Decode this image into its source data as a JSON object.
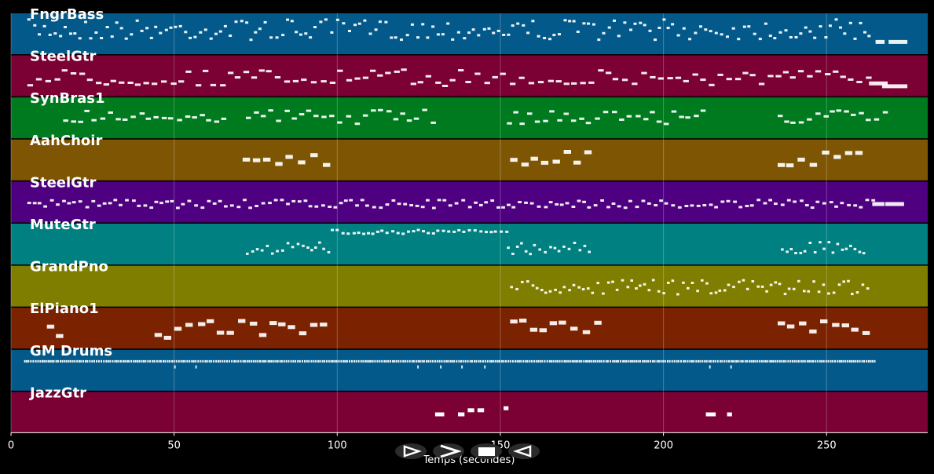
{
  "chart_data": {
    "type": "piano-roll",
    "xlabel": "Temps (secondes)",
    "xlim": [
      0,
      281
    ],
    "x_ticks": [
      0,
      50,
      100,
      150,
      200,
      250
    ],
    "grid": "vertical",
    "tracks": [
      {
        "name": "FngrBass",
        "color": "#035a8a",
        "spans": [
          [
            5,
            264,
            0.15,
            0.65,
            1.2
          ],
          [
            265,
            268,
            0.7,
            0.7,
            3
          ],
          [
            269,
            275,
            0.7,
            0.7,
            6
          ]
        ]
      },
      {
        "name": "SteelGtr",
        "color": "#7b0033",
        "spans": [
          [
            5,
            263,
            0.35,
            0.75,
            2
          ],
          [
            263,
            269,
            0.55,
            0.75,
            6
          ],
          [
            267,
            274,
            0.6,
            0.85,
            8
          ]
        ]
      },
      {
        "name": "SynBras1",
        "color": "#007a1e",
        "spans": [
          [
            16,
            67,
            0.3,
            0.6,
            1.8
          ],
          [
            72,
            131,
            0.3,
            0.65,
            1.8
          ],
          [
            152,
            213,
            0.3,
            0.65,
            1.8
          ],
          [
            235,
            269,
            0.3,
            0.65,
            1.8
          ]
        ]
      },
      {
        "name": "AahChoir",
        "color": "#7e5603",
        "spans": [
          [
            71,
            97,
            0.3,
            0.65,
            2.5
          ],
          [
            153,
            178,
            0.3,
            0.65,
            2.5
          ],
          [
            235,
            260,
            0.3,
            0.65,
            2.5
          ]
        ]
      },
      {
        "name": "SteelGtr",
        "color": "#4e0080",
        "spans": [
          [
            5,
            264,
            0.45,
            0.65,
            1.4
          ],
          [
            264,
            268,
            0.55,
            0.55,
            4
          ],
          [
            268,
            274,
            0.55,
            0.55,
            6
          ]
        ]
      },
      {
        "name": "MuteGtr",
        "color": "#008080",
        "spans": [
          [
            72,
            97,
            0.45,
            0.75,
            1.1
          ],
          [
            98,
            152,
            0.15,
            0.25,
            1.2
          ],
          [
            152,
            178,
            0.45,
            0.75,
            1.1
          ],
          [
            236,
            261,
            0.45,
            0.75,
            1.1
          ]
        ]
      },
      {
        "name": "GrandPno",
        "color": "#7f7e00",
        "spans": [
          [
            153,
            263,
            0.35,
            0.7,
            1.1
          ]
        ]
      },
      {
        "name": "ElPiano1",
        "color": "#7b2300",
        "spans": [
          [
            11,
            17,
            0.4,
            0.7,
            2.5
          ],
          [
            44,
            98,
            0.3,
            0.75,
            2.5
          ],
          [
            153,
            180,
            0.3,
            0.7,
            2.5
          ],
          [
            235,
            262,
            0.3,
            0.7,
            2.5
          ]
        ]
      },
      {
        "name": "GM Drums",
        "color": "#035a8a",
        "spans": [
          [
            4,
            265,
            0.28,
            0.28,
            0.5
          ]
        ],
        "marks": [
          50,
          56.5,
          124.5,
          131.5,
          138,
          145,
          214,
          220.5
        ]
      },
      {
        "name": "JazzGtr",
        "color": "#7b0033",
        "notes": [
          [
            130,
            132.8,
            0.55
          ],
          [
            137,
            139,
            0.55
          ],
          [
            140,
            142,
            0.45
          ],
          [
            143,
            145,
            0.45
          ],
          [
            151,
            152.5,
            0.4
          ],
          [
            213,
            216,
            0.55
          ],
          [
            219.5,
            221,
            0.55
          ]
        ]
      }
    ]
  },
  "controls": {
    "play_forward": "▷",
    "fast_forward": ">",
    "stop": "■",
    "play_backward": "◁"
  }
}
